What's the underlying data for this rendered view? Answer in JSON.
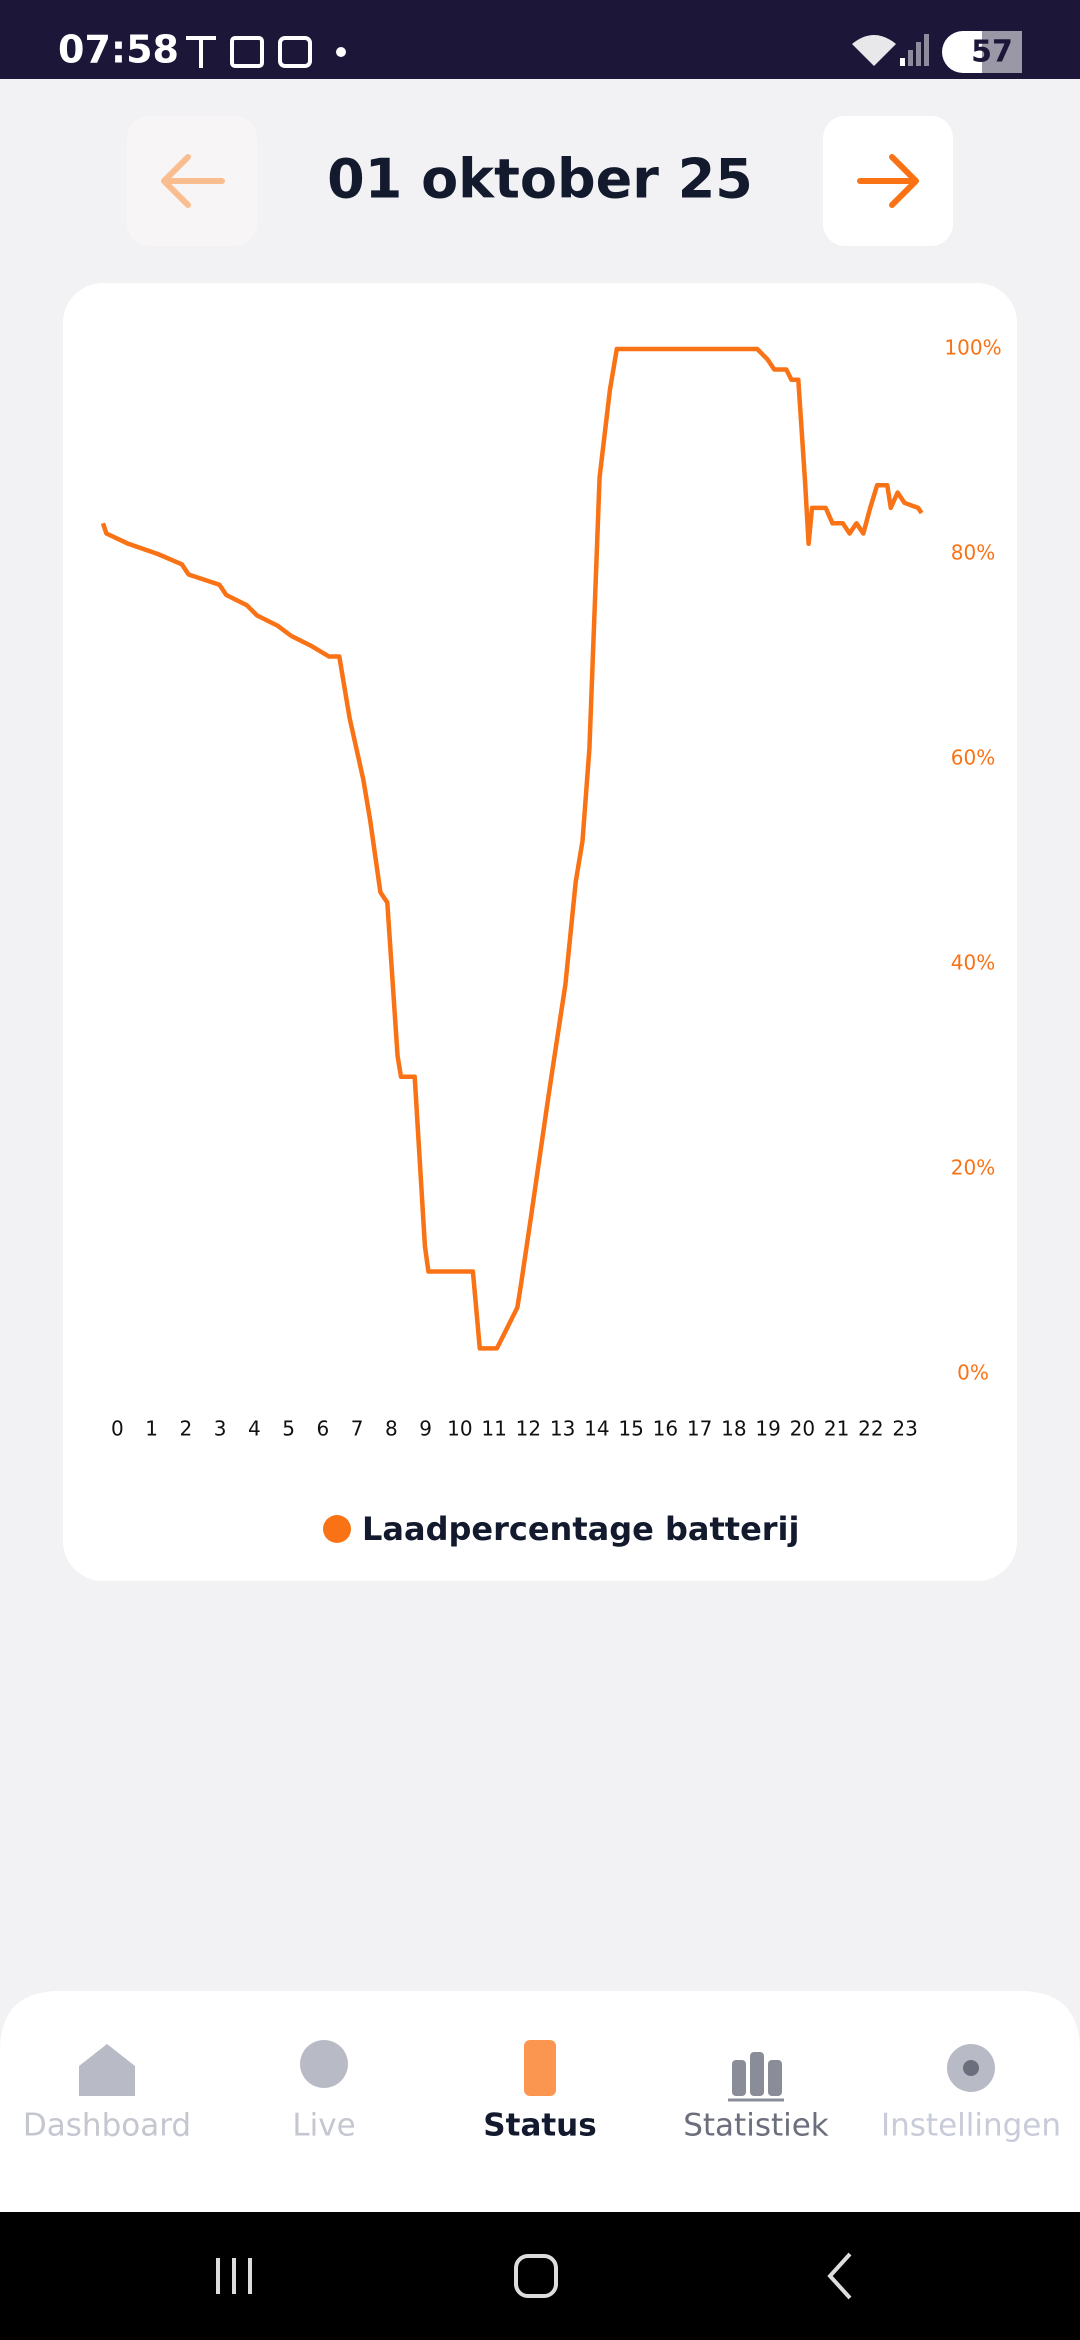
{
  "status_bar": {
    "time": "07:58",
    "battery": "57"
  },
  "header": {
    "title": "01 oktober 25"
  },
  "chart_data": {
    "type": "line",
    "x": [
      0,
      0.1,
      0.74,
      1.6,
      2.3,
      2.5,
      3.4,
      3.6,
      4.2,
      4.5,
      5.1,
      5.5,
      6.1,
      6.6,
      6.9,
      7.2,
      7.6,
      7.8,
      8.1,
      8.3,
      8.6,
      8.7,
      9.1,
      9.4,
      9.5,
      10.8,
      11.0,
      11.5,
      11.8,
      12.1,
      12.2,
      12.5,
      13.0,
      13.2,
      13.5,
      13.8,
      14.0,
      14.2,
      14.5,
      14.8,
      15.0,
      19.1,
      19.4,
      19.6,
      19.95,
      20.1,
      20.3,
      20.5,
      20.6,
      20.7,
      21.1,
      21.3,
      21.6,
      21.8,
      22.0,
      22.2,
      22.4,
      22.6,
      22.9,
      23.0,
      23.2,
      23.4,
      23.8,
      23.9
    ],
    "series": [
      {
        "name": "Laadpercentage batterij",
        "color": "#f97316",
        "values": [
          83,
          82,
          81,
          80,
          79,
          78,
          77,
          76,
          75,
          74,
          73,
          72,
          71,
          70,
          70,
          64,
          58,
          54,
          47,
          46,
          31,
          29,
          29,
          12.5,
          10,
          10,
          2.5,
          2.5,
          4.5,
          6.5,
          8.6,
          15.4,
          27,
          31.4,
          38,
          48,
          52,
          61,
          87.5,
          96,
          100,
          100,
          99,
          98,
          98,
          97,
          97,
          87,
          81,
          84.5,
          84.5,
          83,
          83,
          82,
          83,
          82,
          84.5,
          86.7,
          86.7,
          84.5,
          86,
          85,
          84.5,
          84
        ]
      }
    ],
    "xlim": [
      0,
      24
    ],
    "xticks": [
      0,
      1,
      2,
      3,
      4,
      5,
      6,
      7,
      8,
      9,
      10,
      11,
      12,
      13,
      14,
      15,
      16,
      17,
      18,
      19,
      20,
      21,
      22,
      23
    ],
    "ylim": [
      0,
      100
    ],
    "yticks": [
      {
        "value": 0,
        "label": "0%"
      },
      {
        "value": 20,
        "label": "20%"
      },
      {
        "value": 40,
        "label": "40%"
      },
      {
        "value": 60,
        "label": "60%"
      },
      {
        "value": 80,
        "label": "80%"
      },
      {
        "value": 100,
        "label": "100%"
      }
    ],
    "grid": false,
    "legend": "bottom"
  },
  "nav": {
    "items": [
      "Dashboard",
      "Live",
      "Status",
      "Statistiek",
      "Instellingen"
    ]
  }
}
